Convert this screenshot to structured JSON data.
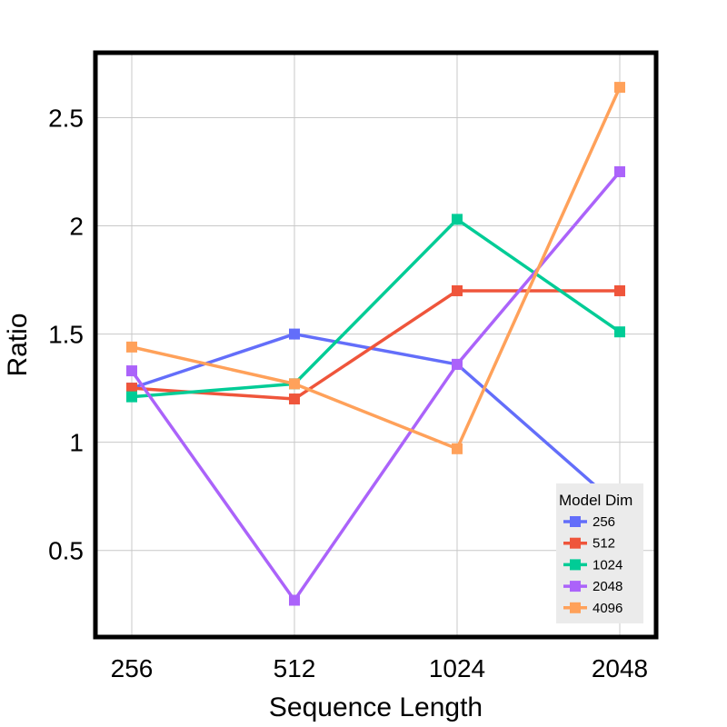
{
  "chart_data": {
    "type": "line",
    "title": "",
    "xlabel": "Sequence Length",
    "ylabel": "Ratio",
    "categories": [
      "256",
      "512",
      "1024",
      "2048"
    ],
    "yticks": [
      0.5,
      1,
      1.5,
      2,
      2.5
    ],
    "ytick_labels": [
      "0.5",
      "1",
      "1.5",
      "2",
      "2.5"
    ],
    "ylim": [
      0.1,
      2.8
    ],
    "grid": true,
    "legend": {
      "title": "Model Dim",
      "position": "bottom-right"
    },
    "series": [
      {
        "name": "256",
        "color": "#636efa",
        "values": [
          1.25,
          1.5,
          1.36,
          0.7
        ]
      },
      {
        "name": "512",
        "color": "#ef553b",
        "values": [
          1.25,
          1.2,
          1.7,
          1.7
        ]
      },
      {
        "name": "1024",
        "color": "#00cc96",
        "values": [
          1.21,
          1.27,
          2.03,
          1.51
        ]
      },
      {
        "name": "2048",
        "color": "#ab63fa",
        "values": [
          1.33,
          0.27,
          1.36,
          2.25
        ]
      },
      {
        "name": "4096",
        "color": "#ffa15a",
        "values": [
          1.44,
          1.27,
          0.97,
          2.64
        ]
      }
    ]
  }
}
